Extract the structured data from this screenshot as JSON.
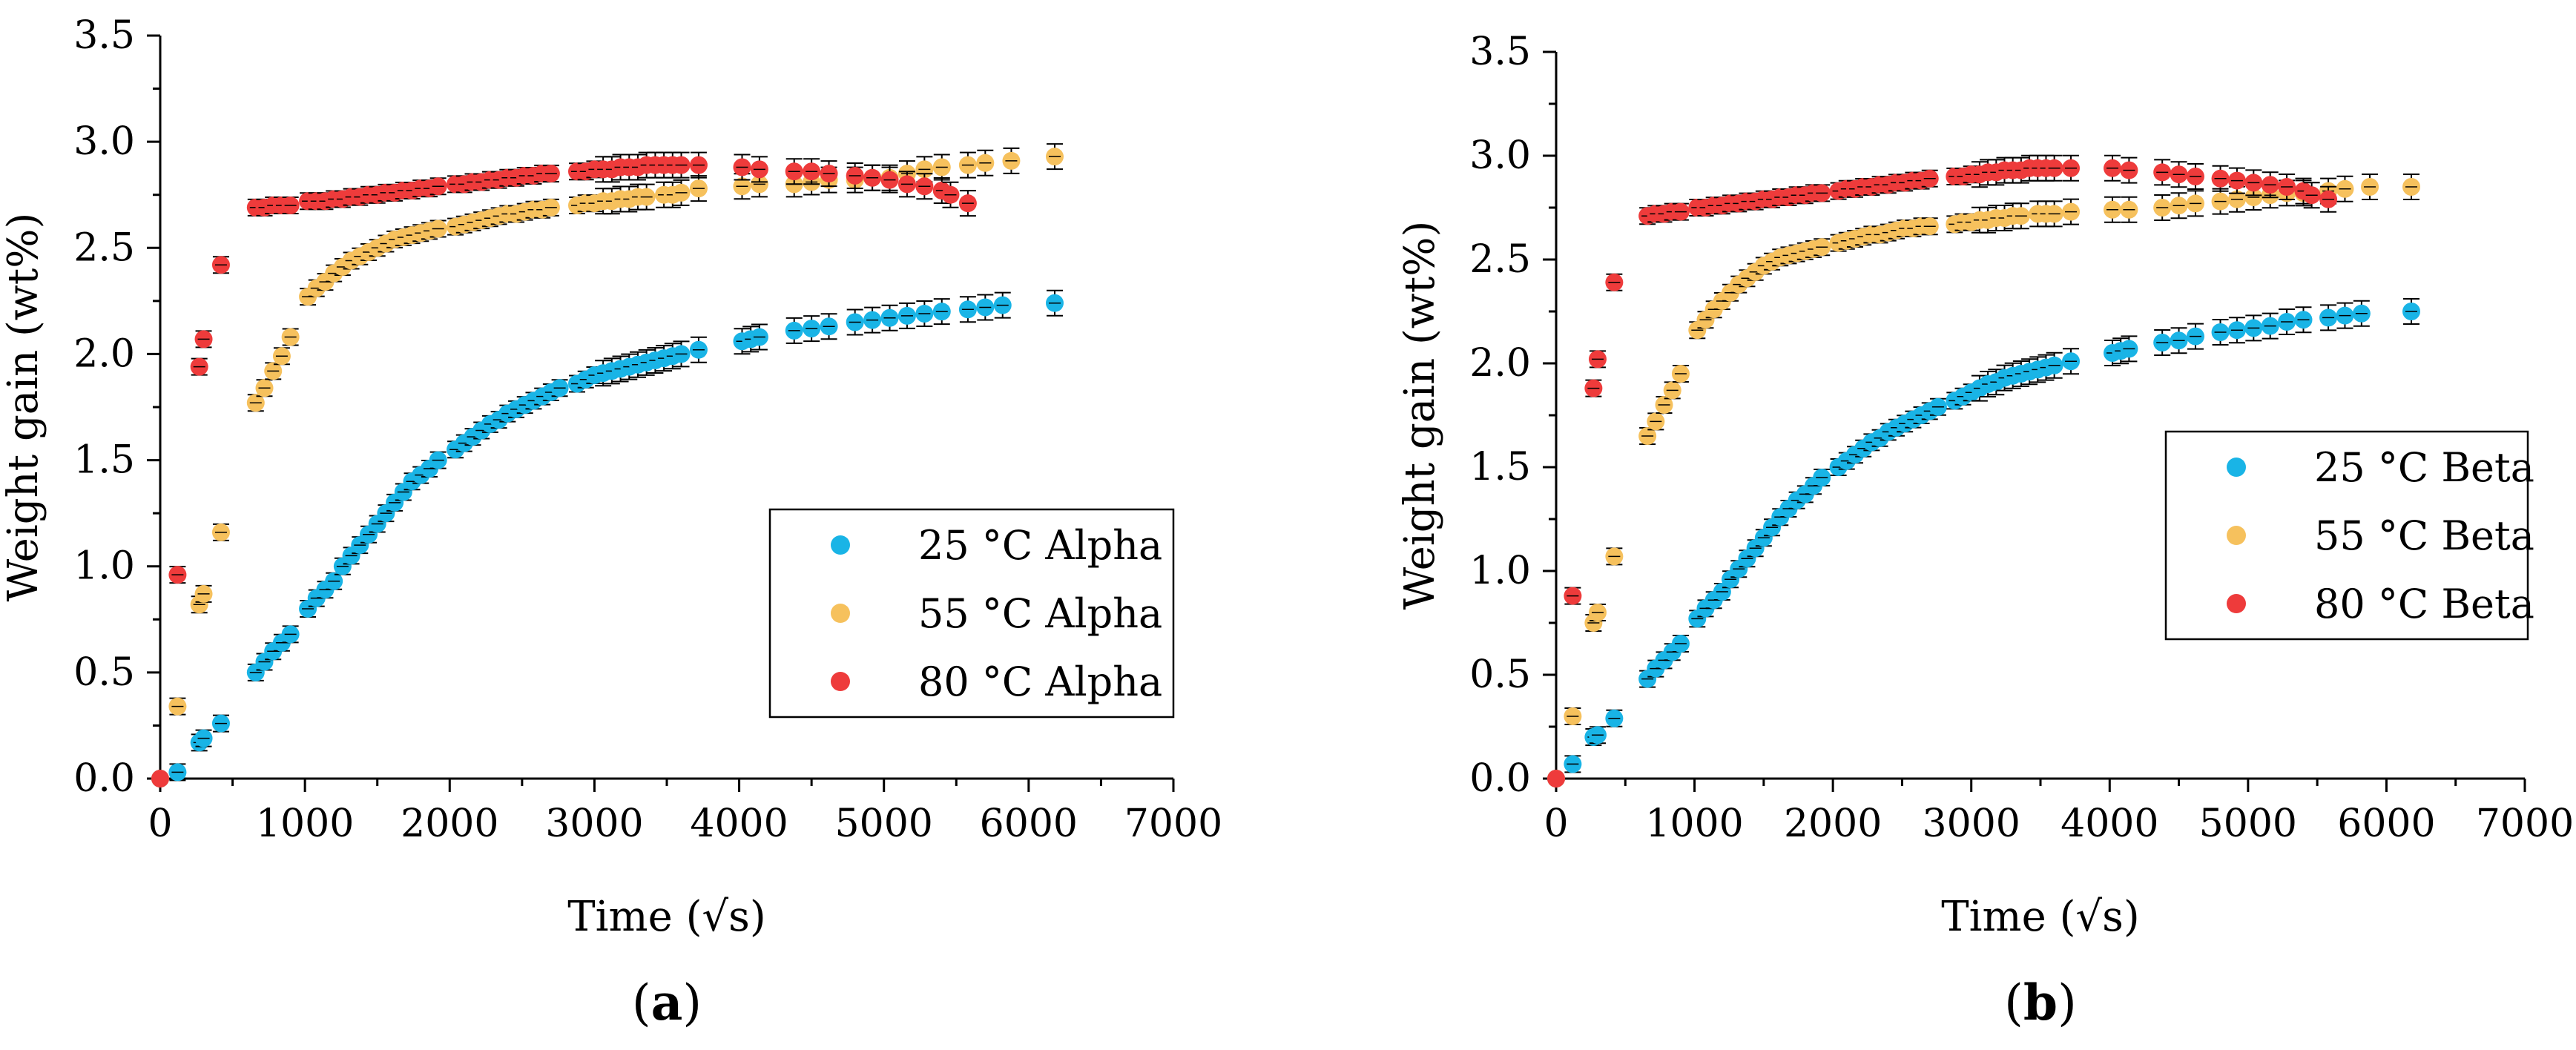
{
  "colors": {
    "series_25": "#19b4e6",
    "series_55": "#f6c15d",
    "series_80": "#ee3b3b",
    "errorbar": "#000000"
  },
  "chart_data": [
    {
      "type": "scatter",
      "panel_label": "a",
      "xlabel": "Time (√s)",
      "ylabel": "Weight gain (wt%)",
      "xlim": [
        0,
        7000
      ],
      "ylim": [
        0,
        3.5
      ],
      "xticks": [
        "0",
        "1000",
        "2000",
        "3000",
        "4000",
        "5000",
        "6000",
        "7000"
      ],
      "yticks": [
        "0.0",
        "0.5",
        "1.0",
        "1.5",
        "2.0",
        "2.5",
        "3.0",
        "3.5"
      ],
      "legend_position": "right",
      "series": [
        {
          "name": "25 °C Alpha",
          "x": [
            0,
            120,
            270,
            300,
            420,
            660,
            720,
            780,
            840,
            900,
            1020,
            1080,
            1140,
            1200,
            1260,
            1320,
            1380,
            1440,
            1500,
            1560,
            1620,
            1680,
            1740,
            1800,
            1860,
            1920,
            2040,
            2100,
            2160,
            2220,
            2280,
            2340,
            2400,
            2460,
            2520,
            2580,
            2640,
            2700,
            2760,
            2880,
            2940,
            3000,
            3060,
            3120,
            3180,
            3240,
            3300,
            3360,
            3420,
            3480,
            3540,
            3600,
            3720,
            4020,
            4080,
            4140,
            4380,
            4500,
            4620,
            4800,
            4920,
            5040,
            5160,
            5280,
            5400,
            5580,
            5700,
            5820,
            6180
          ],
          "y": [
            0.0,
            0.03,
            0.17,
            0.19,
            0.26,
            0.5,
            0.55,
            0.6,
            0.64,
            0.68,
            0.8,
            0.85,
            0.89,
            0.93,
            1.0,
            1.05,
            1.1,
            1.15,
            1.2,
            1.25,
            1.3,
            1.35,
            1.4,
            1.43,
            1.46,
            1.5,
            1.55,
            1.58,
            1.61,
            1.64,
            1.67,
            1.69,
            1.72,
            1.74,
            1.76,
            1.78,
            1.8,
            1.82,
            1.84,
            1.86,
            1.88,
            1.9,
            1.91,
            1.92,
            1.93,
            1.94,
            1.95,
            1.96,
            1.97,
            1.98,
            1.99,
            2.0,
            2.02,
            2.06,
            2.07,
            2.08,
            2.11,
            2.12,
            2.13,
            2.15,
            2.16,
            2.17,
            2.18,
            2.19,
            2.2,
            2.21,
            2.22,
            2.23,
            2.24
          ]
        },
        {
          "name": "55 °C Alpha",
          "x": [
            0,
            120,
            270,
            300,
            420,
            660,
            720,
            780,
            840,
            900,
            1020,
            1080,
            1140,
            1200,
            1260,
            1320,
            1380,
            1440,
            1500,
            1560,
            1620,
            1680,
            1740,
            1800,
            1860,
            1920,
            2040,
            2100,
            2160,
            2220,
            2280,
            2340,
            2400,
            2460,
            2520,
            2580,
            2640,
            2700,
            2880,
            2940,
            3000,
            3060,
            3120,
            3180,
            3240,
            3300,
            3360,
            3480,
            3540,
            3600,
            3720,
            4020,
            4140,
            4380,
            4500,
            4620,
            4800,
            4920,
            5040,
            5160,
            5280,
            5400,
            5580,
            5700,
            5880,
            6180
          ],
          "y": [
            0.0,
            0.34,
            0.82,
            0.87,
            1.16,
            1.77,
            1.84,
            1.92,
            1.99,
            2.08,
            2.27,
            2.31,
            2.34,
            2.38,
            2.41,
            2.44,
            2.46,
            2.48,
            2.5,
            2.52,
            2.54,
            2.55,
            2.56,
            2.57,
            2.58,
            2.59,
            2.6,
            2.61,
            2.62,
            2.63,
            2.64,
            2.65,
            2.66,
            2.66,
            2.67,
            2.68,
            2.68,
            2.69,
            2.7,
            2.71,
            2.71,
            2.72,
            2.72,
            2.73,
            2.73,
            2.74,
            2.74,
            2.75,
            2.75,
            2.76,
            2.78,
            2.79,
            2.8,
            2.8,
            2.81,
            2.82,
            2.82,
            2.83,
            2.83,
            2.85,
            2.87,
            2.88,
            2.89,
            2.9,
            2.91,
            2.93
          ]
        },
        {
          "name": "80 °C Alpha",
          "x": [
            0,
            120,
            270,
            300,
            420,
            660,
            720,
            780,
            840,
            900,
            1020,
            1080,
            1140,
            1200,
            1260,
            1320,
            1380,
            1440,
            1500,
            1560,
            1620,
            1680,
            1740,
            1800,
            1860,
            1920,
            2040,
            2100,
            2160,
            2220,
            2280,
            2340,
            2400,
            2460,
            2520,
            2580,
            2640,
            2700,
            2880,
            2940,
            3000,
            3060,
            3120,
            3180,
            3240,
            3300,
            3360,
            3420,
            3480,
            3540,
            3600,
            3720,
            4020,
            4140,
            4380,
            4500,
            4620,
            4800,
            4920,
            5040,
            5160,
            5280,
            5400,
            5460,
            5580
          ],
          "y": [
            0.0,
            0.96,
            1.94,
            2.07,
            2.42,
            2.69,
            2.69,
            2.7,
            2.7,
            2.7,
            2.72,
            2.72,
            2.72,
            2.73,
            2.73,
            2.74,
            2.74,
            2.75,
            2.75,
            2.76,
            2.76,
            2.77,
            2.77,
            2.78,
            2.78,
            2.79,
            2.8,
            2.8,
            2.81,
            2.81,
            2.82,
            2.82,
            2.83,
            2.83,
            2.84,
            2.84,
            2.85,
            2.85,
            2.86,
            2.86,
            2.87,
            2.87,
            2.87,
            2.88,
            2.88,
            2.88,
            2.89,
            2.89,
            2.89,
            2.89,
            2.89,
            2.89,
            2.88,
            2.87,
            2.86,
            2.86,
            2.85,
            2.84,
            2.83,
            2.82,
            2.8,
            2.79,
            2.77,
            2.75,
            2.71
          ]
        }
      ]
    },
    {
      "type": "scatter",
      "panel_label": "b",
      "xlabel": "Time (√s)",
      "ylabel": "Weight gain (wt%)",
      "xlim": [
        0,
        7000
      ],
      "ylim": [
        0,
        3.5
      ],
      "xticks": [
        "0",
        "1000",
        "2000",
        "3000",
        "4000",
        "5000",
        "6000",
        "7000"
      ],
      "yticks": [
        "0.0",
        "0.5",
        "1.0",
        "1.5",
        "2.0",
        "2.5",
        "3.0",
        "3.5"
      ],
      "legend_position": "right",
      "series": [
        {
          "name": "25 °C Beta",
          "x": [
            0,
            120,
            270,
            300,
            420,
            660,
            720,
            780,
            840,
            900,
            1020,
            1080,
            1140,
            1200,
            1260,
            1320,
            1380,
            1440,
            1500,
            1560,
            1620,
            1680,
            1740,
            1800,
            1860,
            1920,
            2040,
            2100,
            2160,
            2220,
            2280,
            2340,
            2400,
            2460,
            2520,
            2580,
            2640,
            2700,
            2760,
            2880,
            2940,
            3000,
            3060,
            3120,
            3180,
            3240,
            3300,
            3360,
            3420,
            3480,
            3540,
            3600,
            3720,
            4020,
            4080,
            4140,
            4380,
            4500,
            4620,
            4800,
            4920,
            5040,
            5160,
            5280,
            5400,
            5580,
            5700,
            5820,
            6180
          ],
          "y": [
            0.0,
            0.07,
            0.2,
            0.21,
            0.29,
            0.48,
            0.53,
            0.57,
            0.61,
            0.65,
            0.77,
            0.82,
            0.86,
            0.9,
            0.96,
            1.01,
            1.06,
            1.11,
            1.16,
            1.21,
            1.26,
            1.3,
            1.34,
            1.37,
            1.41,
            1.45,
            1.5,
            1.53,
            1.56,
            1.59,
            1.62,
            1.64,
            1.67,
            1.69,
            1.71,
            1.73,
            1.75,
            1.77,
            1.79,
            1.82,
            1.84,
            1.86,
            1.88,
            1.9,
            1.91,
            1.93,
            1.94,
            1.95,
            1.96,
            1.97,
            1.98,
            1.99,
            2.01,
            2.05,
            2.06,
            2.07,
            2.1,
            2.11,
            2.13,
            2.15,
            2.16,
            2.17,
            2.18,
            2.2,
            2.21,
            2.22,
            2.23,
            2.24,
            2.25
          ]
        },
        {
          "name": "55 °C Beta",
          "x": [
            0,
            120,
            270,
            300,
            420,
            660,
            720,
            780,
            840,
            900,
            1020,
            1080,
            1140,
            1200,
            1260,
            1320,
            1380,
            1440,
            1500,
            1560,
            1620,
            1680,
            1740,
            1800,
            1860,
            1920,
            2040,
            2100,
            2160,
            2220,
            2280,
            2340,
            2400,
            2460,
            2520,
            2580,
            2640,
            2700,
            2880,
            2940,
            3000,
            3060,
            3120,
            3180,
            3240,
            3300,
            3360,
            3480,
            3540,
            3600,
            3720,
            4020,
            4140,
            4380,
            4500,
            4620,
            4800,
            4920,
            5040,
            5160,
            5280,
            5400,
            5580,
            5700,
            5880,
            6180
          ],
          "y": [
            0.0,
            0.3,
            0.75,
            0.8,
            1.07,
            1.65,
            1.72,
            1.8,
            1.87,
            1.95,
            2.16,
            2.21,
            2.26,
            2.3,
            2.34,
            2.38,
            2.41,
            2.44,
            2.47,
            2.49,
            2.51,
            2.52,
            2.53,
            2.54,
            2.55,
            2.56,
            2.58,
            2.59,
            2.6,
            2.61,
            2.62,
            2.62,
            2.63,
            2.64,
            2.65,
            2.65,
            2.66,
            2.66,
            2.67,
            2.68,
            2.68,
            2.69,
            2.69,
            2.7,
            2.7,
            2.71,
            2.71,
            2.72,
            2.72,
            2.72,
            2.73,
            2.74,
            2.74,
            2.75,
            2.76,
            2.77,
            2.78,
            2.79,
            2.8,
            2.81,
            2.82,
            2.82,
            2.83,
            2.84,
            2.85,
            2.85
          ]
        },
        {
          "name": "80 °C Beta",
          "x": [
            0,
            120,
            270,
            300,
            420,
            660,
            720,
            780,
            840,
            900,
            1020,
            1080,
            1140,
            1200,
            1260,
            1320,
            1380,
            1440,
            1500,
            1560,
            1620,
            1680,
            1740,
            1800,
            1860,
            1920,
            2040,
            2100,
            2160,
            2220,
            2280,
            2340,
            2400,
            2460,
            2520,
            2580,
            2640,
            2700,
            2880,
            2940,
            3000,
            3060,
            3120,
            3180,
            3240,
            3300,
            3360,
            3420,
            3480,
            3540,
            3600,
            3720,
            4020,
            4140,
            4380,
            4500,
            4620,
            4800,
            4920,
            5040,
            5160,
            5280,
            5400,
            5460,
            5580
          ],
          "y": [
            0.0,
            0.88,
            1.88,
            2.02,
            2.39,
            2.71,
            2.72,
            2.72,
            2.73,
            2.73,
            2.75,
            2.75,
            2.76,
            2.76,
            2.77,
            2.77,
            2.78,
            2.78,
            2.79,
            2.79,
            2.8,
            2.8,
            2.81,
            2.81,
            2.82,
            2.82,
            2.83,
            2.84,
            2.84,
            2.85,
            2.85,
            2.86,
            2.86,
            2.87,
            2.87,
            2.88,
            2.88,
            2.89,
            2.9,
            2.9,
            2.91,
            2.91,
            2.92,
            2.92,
            2.93,
            2.93,
            2.93,
            2.94,
            2.94,
            2.94,
            2.94,
            2.94,
            2.94,
            2.93,
            2.92,
            2.91,
            2.9,
            2.89,
            2.88,
            2.87,
            2.86,
            2.85,
            2.83,
            2.81,
            2.79
          ]
        }
      ]
    }
  ]
}
